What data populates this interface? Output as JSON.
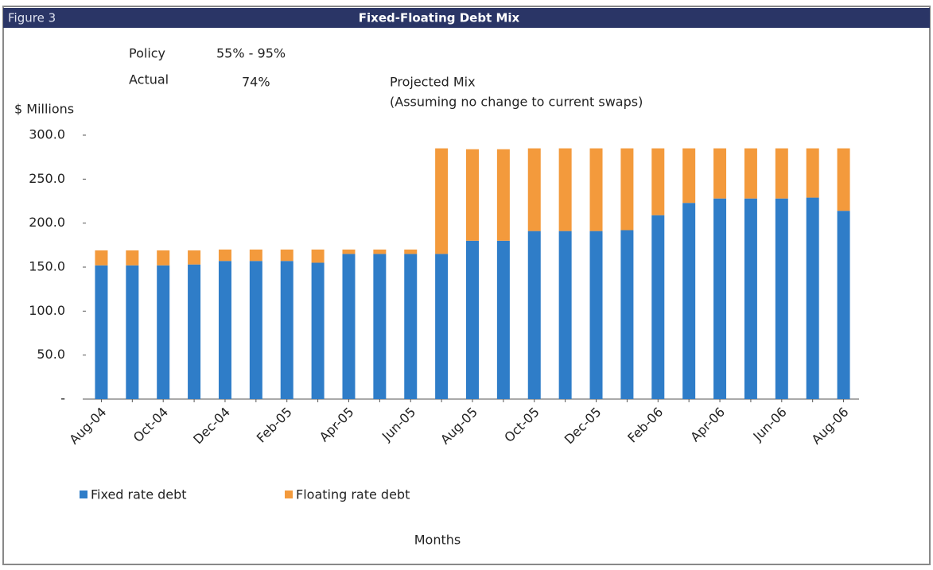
{
  "chart_data": {
    "type": "stacked_bar",
    "figure_label": "Figure 3",
    "title": "Fixed-Floating Debt Mix",
    "annotations": [
      "Policy",
      "55% - 95%",
      "Actual",
      "74%",
      "Projected Mix",
      "(Assuming no change to current swaps)"
    ],
    "y_label": "$ Millions",
    "x_label": "Months",
    "categories": [
      "Aug-04",
      null,
      "Oct-04",
      null,
      "Dec-04",
      null,
      "Feb-05",
      null,
      "Apr-05",
      null,
      "Jun-05",
      null,
      "Aug-05",
      null,
      "Oct-05",
      null,
      "Dec-05",
      null,
      "Feb-06",
      null,
      "Apr-06",
      null,
      "Jun-06",
      null,
      "Aug-06"
    ],
    "series": [
      {
        "name": "Fixed rate debt",
        "color": "#2f7dc8",
        "values": [
          152,
          152,
          152,
          153,
          157,
          157,
          157,
          155,
          165,
          165,
          165,
          165,
          180,
          180,
          191,
          191,
          191,
          192,
          209,
          223,
          228,
          228,
          228,
          229,
          214
        ]
      },
      {
        "name": "Floating rate debt",
        "color": "#f39a3c",
        "values": [
          17,
          17,
          17,
          16,
          13,
          13,
          13,
          15,
          5,
          5,
          5,
          120,
          104,
          104,
          94,
          94,
          94,
          93,
          76,
          62,
          57,
          57,
          57,
          56,
          71
        ]
      }
    ],
    "ylim": [
      0,
      300
    ],
    "yticks": [
      {
        "value": 0,
        "label": "-"
      },
      {
        "value": 50,
        "label": "50.0"
      },
      {
        "value": 100,
        "label": "100.0"
      },
      {
        "value": 150,
        "label": "150.0"
      },
      {
        "value": 200,
        "label": "200.0"
      },
      {
        "value": 250,
        "label": "250.0"
      },
      {
        "value": 300,
        "label": "300.0"
      }
    ],
    "grid": false,
    "legend": "bottom"
  }
}
